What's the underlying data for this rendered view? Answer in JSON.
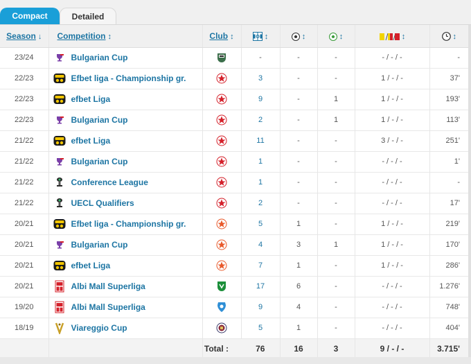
{
  "tabs": {
    "compact": "Compact",
    "detailed": "Detailed"
  },
  "headers": {
    "season": "Season",
    "competition": "Competition",
    "club": "Club",
    "sort": "↕",
    "sort_desc": "↓",
    "apps_icon": "appearances-icon",
    "goals_icon": "goal-icon",
    "assists_icon": "assist-icon",
    "cards_icon": "cards-icon",
    "minutes_icon": "clock-icon"
  },
  "rows": [
    {
      "season": "23/24",
      "competition": "Bulgarian Cup",
      "comp_logo": "cup-icon",
      "club_logo": "club-logo-gray",
      "apps": "-",
      "goals": "-",
      "assists": "-",
      "cards": "- / - / -",
      "minutes": "-",
      "apps_link": false
    },
    {
      "season": "22/23",
      "competition": "Efbet liga - Championship gr.",
      "comp_logo": "efbet-icon",
      "club_logo": "club-logo-red",
      "apps": "3",
      "goals": "-",
      "assists": "-",
      "cards": "1 / - / -",
      "minutes": "37'",
      "apps_link": true
    },
    {
      "season": "22/23",
      "competition": "efbet Liga",
      "comp_logo": "efbet-icon",
      "club_logo": "club-logo-red",
      "apps": "9",
      "goals": "-",
      "assists": "1",
      "cards": "1 / - / -",
      "minutes": "193'",
      "apps_link": true
    },
    {
      "season": "22/23",
      "competition": "Bulgarian Cup",
      "comp_logo": "cup-icon",
      "club_logo": "club-logo-red",
      "apps": "2",
      "goals": "-",
      "assists": "1",
      "cards": "1 / - / -",
      "minutes": "113'",
      "apps_link": true
    },
    {
      "season": "21/22",
      "competition": "efbet Liga",
      "comp_logo": "efbet-icon",
      "club_logo": "club-logo-red",
      "apps": "11",
      "goals": "-",
      "assists": "-",
      "cards": "3 / - / -",
      "minutes": "251'",
      "apps_link": true
    },
    {
      "season": "21/22",
      "competition": "Bulgarian Cup",
      "comp_logo": "cup-icon",
      "club_logo": "club-logo-red",
      "apps": "1",
      "goals": "-",
      "assists": "-",
      "cards": "- / - / -",
      "minutes": "1'",
      "apps_link": true
    },
    {
      "season": "21/22",
      "competition": "Conference League",
      "comp_logo": "trophy-icon",
      "club_logo": "club-logo-red",
      "apps": "1",
      "goals": "-",
      "assists": "-",
      "cards": "- / - / -",
      "minutes": "-",
      "apps_link": true
    },
    {
      "season": "21/22",
      "competition": "UECL Qualifiers",
      "comp_logo": "trophy-icon",
      "club_logo": "club-logo-red",
      "apps": "2",
      "goals": "-",
      "assists": "-",
      "cards": "- / - / -",
      "minutes": "17'",
      "apps_link": true
    },
    {
      "season": "20/21",
      "competition": "Efbet liga - Championship gr.",
      "comp_logo": "efbet-icon",
      "club_logo": "club-logo-orange",
      "apps": "5",
      "goals": "1",
      "assists": "-",
      "cards": "1 / - / -",
      "minutes": "219'",
      "apps_link": true
    },
    {
      "season": "20/21",
      "competition": "Bulgarian Cup",
      "comp_logo": "cup-icon",
      "club_logo": "club-logo-orange",
      "apps": "4",
      "goals": "3",
      "assists": "1",
      "cards": "1 / - / -",
      "minutes": "170'",
      "apps_link": true
    },
    {
      "season": "20/21",
      "competition": "efbet Liga",
      "comp_logo": "efbet-icon",
      "club_logo": "club-logo-orange",
      "apps": "7",
      "goals": "1",
      "assists": "-",
      "cards": "1 / - / -",
      "minutes": "286'",
      "apps_link": true
    },
    {
      "season": "20/21",
      "competition": "Albi Mall Superliga",
      "comp_logo": "albi-icon",
      "club_logo": "club-logo-green",
      "apps": "17",
      "goals": "6",
      "assists": "-",
      "cards": "- / - / -",
      "minutes": "1.276'",
      "apps_link": true
    },
    {
      "season": "19/20",
      "competition": "Albi Mall Superliga",
      "comp_logo": "albi-icon",
      "club_logo": "club-logo-blue",
      "apps": "9",
      "goals": "4",
      "assists": "-",
      "cards": "- / - / -",
      "minutes": "748'",
      "apps_link": true
    },
    {
      "season": "18/19",
      "competition": "Viareggio Cup",
      "comp_logo": "viareggio-icon",
      "club_logo": "club-logo-crest",
      "apps": "5",
      "goals": "1",
      "assists": "-",
      "cards": "- / - / -",
      "minutes": "404'",
      "apps_link": true
    }
  ],
  "totals": {
    "label": "Total :",
    "apps": "76",
    "goals": "16",
    "assists": "3",
    "cards": "9 / - / -",
    "minutes": "3.715'"
  },
  "colors": {
    "accent": "#1a9fd8",
    "link": "#1d75a3",
    "red_club": "#d4202a",
    "orange_club": "#e8592b",
    "green_club": "#1c8f3a",
    "blue_club": "#2f8fd6"
  }
}
